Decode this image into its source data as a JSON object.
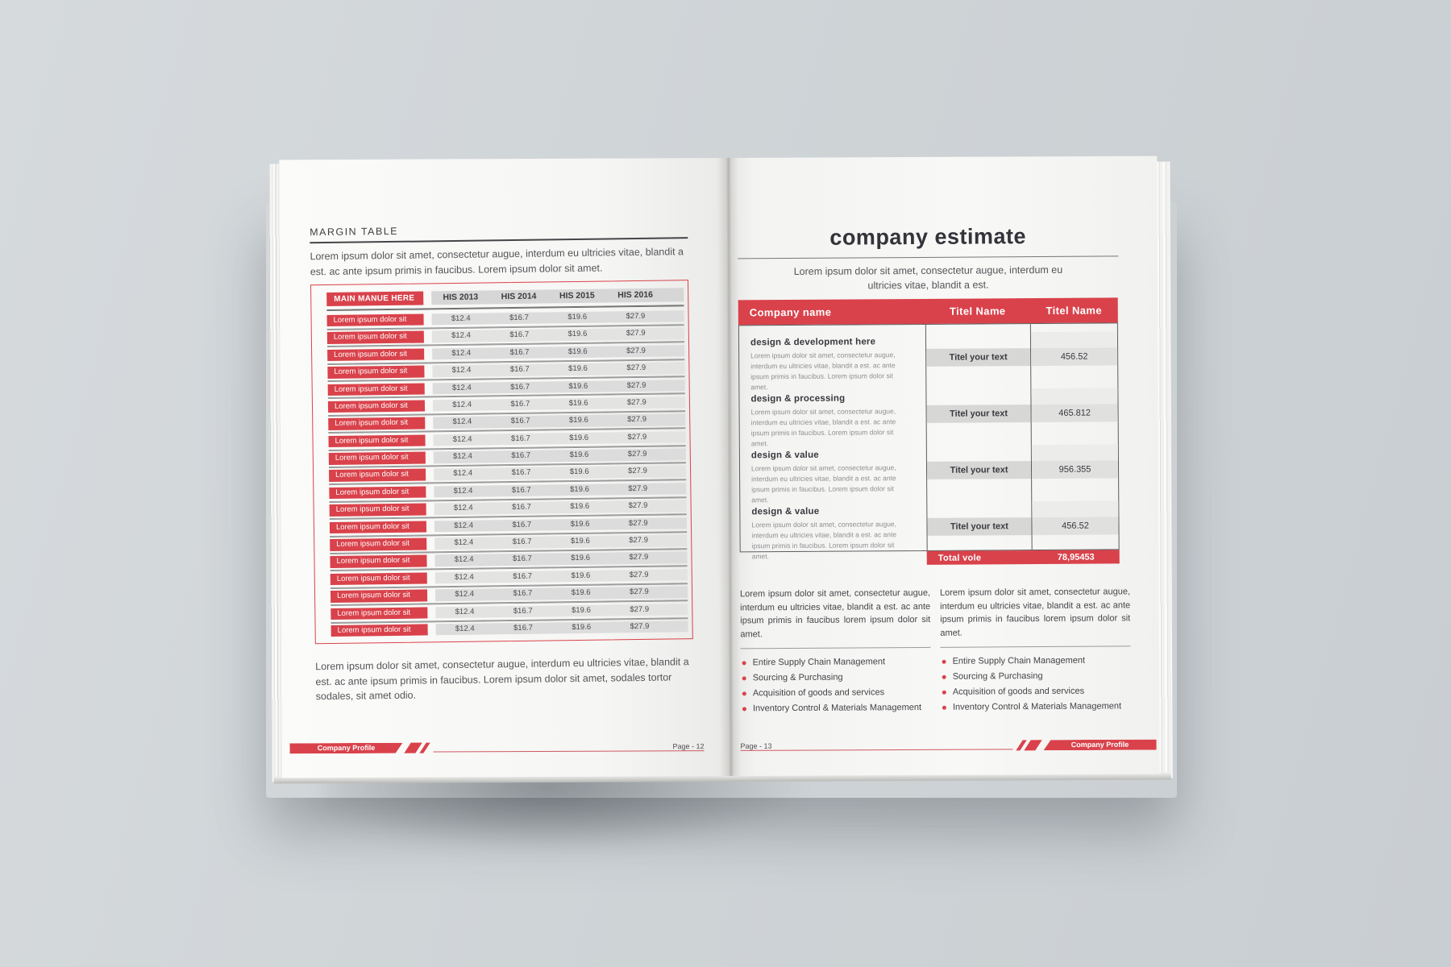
{
  "theme": {
    "accent_red": "#d9424b",
    "page_color": "#f6f6f4",
    "backdrop": "#ced3d7"
  },
  "left_page": {
    "heading": "MARGIN TABLE",
    "intro": "Lorem ipsum dolor sit amet, consectetur augue, interdum eu ultricies vitae, blandit a est. ac ante ipsum primis in faucibus. Lorem ipsum dolor sit amet.",
    "table": {
      "menu_header": "MAIN MANUE HERE",
      "columns": [
        "HIS 2013",
        "HIS 2014",
        "HIS 2015",
        "HIS 2016"
      ],
      "rows": [
        {
          "label": "Lorem ipsum dolor sit",
          "values": [
            "$12.4",
            "$16.7",
            "$19.6",
            "$27.9"
          ]
        },
        {
          "label": "Lorem ipsum dolor sit",
          "values": [
            "$12.4",
            "$16.7",
            "$19.6",
            "$27.9"
          ]
        },
        {
          "label": "Lorem ipsum dolor sit",
          "values": [
            "$12.4",
            "$16.7",
            "$19.6",
            "$27.9"
          ]
        },
        {
          "label": "Lorem ipsum dolor sit",
          "values": [
            "$12.4",
            "$16.7",
            "$19.6",
            "$27.9"
          ]
        },
        {
          "label": "Lorem ipsum dolor sit",
          "values": [
            "$12.4",
            "$16.7",
            "$19.6",
            "$27.9"
          ]
        },
        {
          "label": "Lorem ipsum dolor sit",
          "values": [
            "$12.4",
            "$16.7",
            "$19.6",
            "$27.9"
          ]
        },
        {
          "label": "Lorem ipsum dolor sit",
          "values": [
            "$12.4",
            "$16.7",
            "$19.6",
            "$27.9"
          ]
        },
        {
          "label": "Lorem ipsum dolor sit",
          "values": [
            "$12.4",
            "$16.7",
            "$19.6",
            "$27.9"
          ]
        },
        {
          "label": "Lorem ipsum dolor sit",
          "values": [
            "$12.4",
            "$16.7",
            "$19.6",
            "$27.9"
          ]
        },
        {
          "label": "Lorem ipsum dolor sit",
          "values": [
            "$12.4",
            "$16.7",
            "$19.6",
            "$27.9"
          ]
        },
        {
          "label": "Lorem ipsum dolor sit",
          "values": [
            "$12.4",
            "$16.7",
            "$19.6",
            "$27.9"
          ]
        },
        {
          "label": "Lorem ipsum dolor sit",
          "values": [
            "$12.4",
            "$16.7",
            "$19.6",
            "$27.9"
          ]
        },
        {
          "label": "Lorem ipsum dolor sit",
          "values": [
            "$12.4",
            "$16.7",
            "$19.6",
            "$27.9"
          ]
        },
        {
          "label": "Lorem ipsum dolor sit",
          "values": [
            "$12.4",
            "$16.7",
            "$19.6",
            "$27.9"
          ]
        },
        {
          "label": "Lorem ipsum dolor sit",
          "values": [
            "$12.4",
            "$16.7",
            "$19.6",
            "$27.9"
          ]
        },
        {
          "label": "Lorem ipsum dolor sit",
          "values": [
            "$12.4",
            "$16.7",
            "$19.6",
            "$27.9"
          ]
        },
        {
          "label": "Lorem ipsum dolor sit",
          "values": [
            "$12.4",
            "$16.7",
            "$19.6",
            "$27.9"
          ]
        },
        {
          "label": "Lorem ipsum dolor sit",
          "values": [
            "$12.4",
            "$16.7",
            "$19.6",
            "$27.9"
          ]
        },
        {
          "label": "Lorem ipsum dolor sit",
          "values": [
            "$12.4",
            "$16.7",
            "$19.6",
            "$27.9"
          ]
        }
      ]
    },
    "outro": "Lorem ipsum dolor sit amet, consectetur augue, interdum eu ultricies vitae, blandit a est. ac ante ipsum primis in faucibus. Lorem ipsum dolor sit amet, sodales tortor sodales, sit amet odio.",
    "footer_badge": "Company Profile",
    "page_number": "Page - 12"
  },
  "right_page": {
    "title": "company estimate",
    "intro": "Lorem ipsum dolor sit amet, consectetur augue, interdum eu ultricies vitae, blandit a est.",
    "estimate_table": {
      "columns": [
        "Company name",
        "Titel Name",
        "Titel Name"
      ],
      "rows": [
        {
          "heading": "design & development here",
          "description": "Lorem ipsum dolor sit amet, consectetur augue, interdum eu ultricies vitae, blandit a est. ac ante ipsum primis in faucibus. Lorem ipsum dolor sit amet.",
          "label": "Titel your text",
          "value": "456.52"
        },
        {
          "heading": "design & processing",
          "description": "Lorem ipsum dolor sit amet, consectetur augue, interdum eu ultricies vitae, blandit a est. ac ante ipsum primis in faucibus. Lorem ipsum dolor sit amet.",
          "label": "Titel your text",
          "value": "465.812"
        },
        {
          "heading": "design & value",
          "description": "Lorem ipsum dolor sit amet, consectetur augue, interdum eu ultricies vitae, blandit a est. ac ante ipsum primis in faucibus. Lorem ipsum dolor sit amet.",
          "label": "Titel your text",
          "value": "956.355"
        },
        {
          "heading": "design & value",
          "description": "Lorem ipsum dolor sit amet, consectetur augue, interdum eu ultricies vitae, blandit a est. ac ante ipsum primis in faucibus. Lorem ipsum dolor sit amet.",
          "label": "Titel your text",
          "value": "456.52"
        }
      ],
      "total_label": "Total vole",
      "total_value": "78,95453"
    },
    "columns": [
      {
        "paragraph": "Lorem ipsum dolor sit amet, consectetur augue, interdum eu ultricies vitae, blandit a est. ac ante ipsum primis in faucibus lorem ipsum dolor sit amet.",
        "bullets": [
          "Entire Supply Chain Management",
          "Sourcing & Purchasing",
          "Acquisition of goods and services",
          "Inventory Control & Materials Management"
        ]
      },
      {
        "paragraph": "Lorem ipsum dolor sit amet, consectetur augue, interdum eu ultricies vitae, blandit a est. ac ante ipsum primis in faucibus lorem ipsum dolor sit amet.",
        "bullets": [
          "Entire Supply Chain Management",
          "Sourcing & Purchasing",
          "Acquisition of goods and services",
          "Inventory Control & Materials Management"
        ]
      }
    ],
    "footer_badge": "Company Profile",
    "page_number": "Page - 13"
  }
}
